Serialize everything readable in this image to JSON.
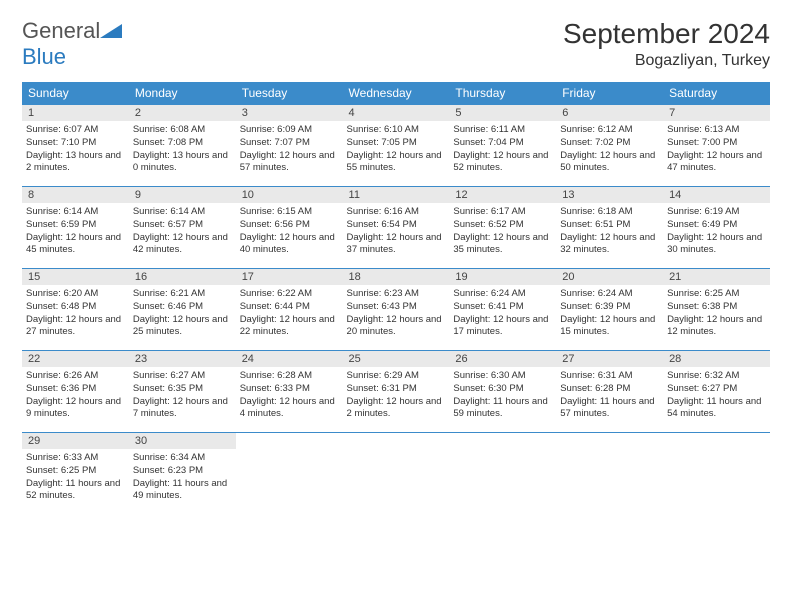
{
  "brand": {
    "part1": "General",
    "part2": "Blue"
  },
  "title": "September 2024",
  "location": "Bogazliyan, Turkey",
  "colors": {
    "header_bg": "#3b8bca",
    "header_text": "#ffffff",
    "daynum_bg": "#e9e9e9",
    "border": "#3b8bca",
    "logo_blue": "#2b7bbf",
    "text": "#333333"
  },
  "day_headers": [
    "Sunday",
    "Monday",
    "Tuesday",
    "Wednesday",
    "Thursday",
    "Friday",
    "Saturday"
  ],
  "weeks": [
    [
      {
        "n": "1",
        "sr": "6:07 AM",
        "ss": "7:10 PM",
        "dl": "13 hours and 2 minutes."
      },
      {
        "n": "2",
        "sr": "6:08 AM",
        "ss": "7:08 PM",
        "dl": "13 hours and 0 minutes."
      },
      {
        "n": "3",
        "sr": "6:09 AM",
        "ss": "7:07 PM",
        "dl": "12 hours and 57 minutes."
      },
      {
        "n": "4",
        "sr": "6:10 AM",
        "ss": "7:05 PM",
        "dl": "12 hours and 55 minutes."
      },
      {
        "n": "5",
        "sr": "6:11 AM",
        "ss": "7:04 PM",
        "dl": "12 hours and 52 minutes."
      },
      {
        "n": "6",
        "sr": "6:12 AM",
        "ss": "7:02 PM",
        "dl": "12 hours and 50 minutes."
      },
      {
        "n": "7",
        "sr": "6:13 AM",
        "ss": "7:00 PM",
        "dl": "12 hours and 47 minutes."
      }
    ],
    [
      {
        "n": "8",
        "sr": "6:14 AM",
        "ss": "6:59 PM",
        "dl": "12 hours and 45 minutes."
      },
      {
        "n": "9",
        "sr": "6:14 AM",
        "ss": "6:57 PM",
        "dl": "12 hours and 42 minutes."
      },
      {
        "n": "10",
        "sr": "6:15 AM",
        "ss": "6:56 PM",
        "dl": "12 hours and 40 minutes."
      },
      {
        "n": "11",
        "sr": "6:16 AM",
        "ss": "6:54 PM",
        "dl": "12 hours and 37 minutes."
      },
      {
        "n": "12",
        "sr": "6:17 AM",
        "ss": "6:52 PM",
        "dl": "12 hours and 35 minutes."
      },
      {
        "n": "13",
        "sr": "6:18 AM",
        "ss": "6:51 PM",
        "dl": "12 hours and 32 minutes."
      },
      {
        "n": "14",
        "sr": "6:19 AM",
        "ss": "6:49 PM",
        "dl": "12 hours and 30 minutes."
      }
    ],
    [
      {
        "n": "15",
        "sr": "6:20 AM",
        "ss": "6:48 PM",
        "dl": "12 hours and 27 minutes."
      },
      {
        "n": "16",
        "sr": "6:21 AM",
        "ss": "6:46 PM",
        "dl": "12 hours and 25 minutes."
      },
      {
        "n": "17",
        "sr": "6:22 AM",
        "ss": "6:44 PM",
        "dl": "12 hours and 22 minutes."
      },
      {
        "n": "18",
        "sr": "6:23 AM",
        "ss": "6:43 PM",
        "dl": "12 hours and 20 minutes."
      },
      {
        "n": "19",
        "sr": "6:24 AM",
        "ss": "6:41 PM",
        "dl": "12 hours and 17 minutes."
      },
      {
        "n": "20",
        "sr": "6:24 AM",
        "ss": "6:39 PM",
        "dl": "12 hours and 15 minutes."
      },
      {
        "n": "21",
        "sr": "6:25 AM",
        "ss": "6:38 PM",
        "dl": "12 hours and 12 minutes."
      }
    ],
    [
      {
        "n": "22",
        "sr": "6:26 AM",
        "ss": "6:36 PM",
        "dl": "12 hours and 9 minutes."
      },
      {
        "n": "23",
        "sr": "6:27 AM",
        "ss": "6:35 PM",
        "dl": "12 hours and 7 minutes."
      },
      {
        "n": "24",
        "sr": "6:28 AM",
        "ss": "6:33 PM",
        "dl": "12 hours and 4 minutes."
      },
      {
        "n": "25",
        "sr": "6:29 AM",
        "ss": "6:31 PM",
        "dl": "12 hours and 2 minutes."
      },
      {
        "n": "26",
        "sr": "6:30 AM",
        "ss": "6:30 PM",
        "dl": "11 hours and 59 minutes."
      },
      {
        "n": "27",
        "sr": "6:31 AM",
        "ss": "6:28 PM",
        "dl": "11 hours and 57 minutes."
      },
      {
        "n": "28",
        "sr": "6:32 AM",
        "ss": "6:27 PM",
        "dl": "11 hours and 54 minutes."
      }
    ],
    [
      {
        "n": "29",
        "sr": "6:33 AM",
        "ss": "6:25 PM",
        "dl": "11 hours and 52 minutes."
      },
      {
        "n": "30",
        "sr": "6:34 AM",
        "ss": "6:23 PM",
        "dl": "11 hours and 49 minutes."
      },
      null,
      null,
      null,
      null,
      null
    ]
  ],
  "labels": {
    "sunrise": "Sunrise:",
    "sunset": "Sunset:",
    "daylight": "Daylight:"
  }
}
